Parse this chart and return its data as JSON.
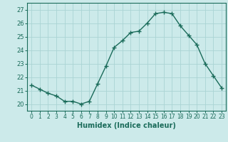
{
  "x": [
    0,
    1,
    2,
    3,
    4,
    5,
    6,
    7,
    8,
    9,
    10,
    11,
    12,
    13,
    14,
    15,
    16,
    17,
    18,
    19,
    20,
    21,
    22,
    23
  ],
  "y": [
    21.4,
    21.1,
    20.8,
    20.6,
    20.2,
    20.2,
    20.0,
    20.2,
    21.5,
    22.8,
    24.2,
    24.7,
    25.3,
    25.4,
    26.0,
    26.7,
    26.8,
    26.7,
    25.8,
    25.1,
    24.4,
    23.0,
    22.1,
    21.2
  ],
  "xlabel": "Humidex (Indice chaleur)",
  "line_color": "#1a6b5a",
  "bg_color": "#cceaea",
  "grid_color": "#aad4d4",
  "ylim": [
    19.5,
    27.5
  ],
  "xlim": [
    -0.5,
    23.5
  ],
  "yticks": [
    20,
    21,
    22,
    23,
    24,
    25,
    26,
    27
  ],
  "xticks": [
    0,
    1,
    2,
    3,
    4,
    5,
    6,
    7,
    8,
    9,
    10,
    11,
    12,
    13,
    14,
    15,
    16,
    17,
    18,
    19,
    20,
    21,
    22,
    23
  ]
}
